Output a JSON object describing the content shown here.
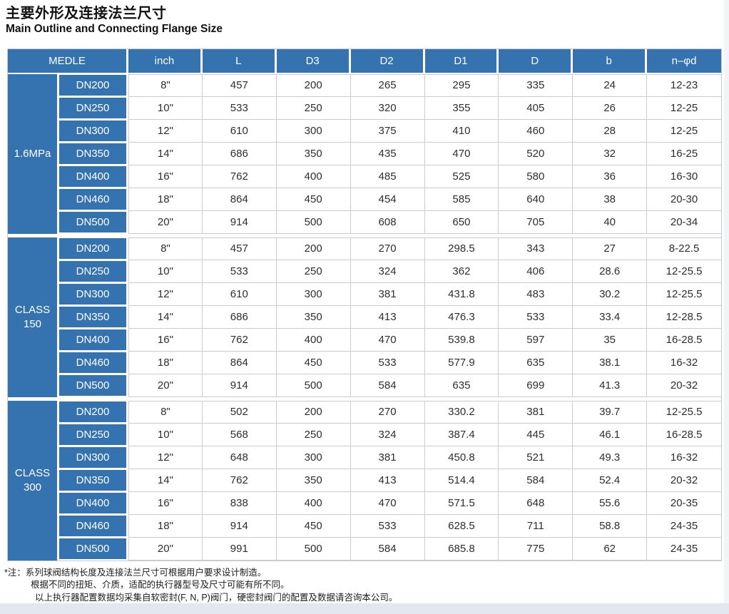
{
  "page": {
    "title_zh": "主要外形及连接法兰尺寸",
    "title_en": "Main Outline and Connecting Flange Size"
  },
  "table": {
    "header": [
      "MEDLE",
      "inch",
      "L",
      "D3",
      "D2",
      "D1",
      "D",
      "b",
      "n–φd"
    ],
    "groups": [
      {
        "label": "1.6MPa",
        "rows": [
          {
            "dn": "DN200",
            "cells": [
              "8\"",
              "457",
              "200",
              "265",
              "295",
              "335",
              "24",
              "12-23"
            ]
          },
          {
            "dn": "DN250",
            "cells": [
              "10\"",
              "533",
              "250",
              "320",
              "355",
              "405",
              "26",
              "12-25"
            ]
          },
          {
            "dn": "DN300",
            "cells": [
              "12\"",
              "610",
              "300",
              "375",
              "410",
              "460",
              "28",
              "12-25"
            ]
          },
          {
            "dn": "DN350",
            "cells": [
              "14\"",
              "686",
              "350",
              "435",
              "470",
              "520",
              "32",
              "16-25"
            ]
          },
          {
            "dn": "DN400",
            "cells": [
              "16\"",
              "762",
              "400",
              "485",
              "525",
              "580",
              "36",
              "16-30"
            ]
          },
          {
            "dn": "DN460",
            "cells": [
              "18\"",
              "864",
              "450",
              "454",
              "585",
              "640",
              "38",
              "20-30"
            ]
          },
          {
            "dn": "DN500",
            "cells": [
              "20\"",
              "914",
              "500",
              "608",
              "650",
              "705",
              "40",
              "20-34"
            ]
          }
        ]
      },
      {
        "label": "CLASS 150",
        "rows": [
          {
            "dn": "DN200",
            "cells": [
              "8\"",
              "457",
              "200",
              "270",
              "298.5",
              "343",
              "27",
              "8-22.5"
            ]
          },
          {
            "dn": "DN250",
            "cells": [
              "10\"",
              "533",
              "250",
              "324",
              "362",
              "406",
              "28.6",
              "12-25.5"
            ]
          },
          {
            "dn": "DN300",
            "cells": [
              "12\"",
              "610",
              "300",
              "381",
              "431.8",
              "483",
              "30.2",
              "12-25.5"
            ]
          },
          {
            "dn": "DN350",
            "cells": [
              "14\"",
              "686",
              "350",
              "413",
              "476.3",
              "533",
              "33.4",
              "12-28.5"
            ]
          },
          {
            "dn": "DN400",
            "cells": [
              "16\"",
              "762",
              "400",
              "470",
              "539.8",
              "597",
              "35",
              "16-28.5"
            ]
          },
          {
            "dn": "DN460",
            "cells": [
              "18\"",
              "864",
              "450",
              "533",
              "577.9",
              "635",
              "38.1",
              "16-32"
            ]
          },
          {
            "dn": "DN500",
            "cells": [
              "20\"",
              "914",
              "500",
              "584",
              "635",
              "699",
              "41.3",
              "20-32"
            ]
          }
        ]
      },
      {
        "label": "CLASS 300",
        "rows": [
          {
            "dn": "DN200",
            "cells": [
              "8\"",
              "502",
              "200",
              "270",
              "330.2",
              "381",
              "39.7",
              "12-25.5"
            ]
          },
          {
            "dn": "DN250",
            "cells": [
              "10\"",
              "568",
              "250",
              "324",
              "387.4",
              "445",
              "46.1",
              "16-28.5"
            ]
          },
          {
            "dn": "DN300",
            "cells": [
              "12\"",
              "648",
              "300",
              "381",
              "450.8",
              "521",
              "49.3",
              "16-32"
            ]
          },
          {
            "dn": "DN350",
            "cells": [
              "14\"",
              "762",
              "350",
              "413",
              "514.4",
              "584",
              "52.4",
              "20-32"
            ]
          },
          {
            "dn": "DN400",
            "cells": [
              "16\"",
              "838",
              "400",
              "470",
              "571.5",
              "648",
              "55.6",
              "20-35"
            ]
          },
          {
            "dn": "DN460",
            "cells": [
              "18\"",
              "914",
              "450",
              "533",
              "628.5",
              "711",
              "58.8",
              "24-35"
            ]
          },
          {
            "dn": "DN500",
            "cells": [
              "20\"",
              "991",
              "500",
              "584",
              "685.8",
              "775",
              "62",
              "24-35"
            ]
          }
        ]
      }
    ]
  },
  "notes": {
    "marker": "*注：",
    "lines": [
      "系列球阀结构长度及连接法兰尺寸可根据用户要求设计制造。",
      "根据不同的扭矩、介质，适配的执行器型号及尺寸可能有所不同。",
      "以上执行器配置数据均采集自软密封(F, N, P)阀门，硬密封阀门的配置及数据请咨询本公司。"
    ]
  },
  "colors": {
    "header_blue": "#3473b0",
    "grid_line": "#c9cdd2",
    "page_edge": "#e2e8ed"
  }
}
